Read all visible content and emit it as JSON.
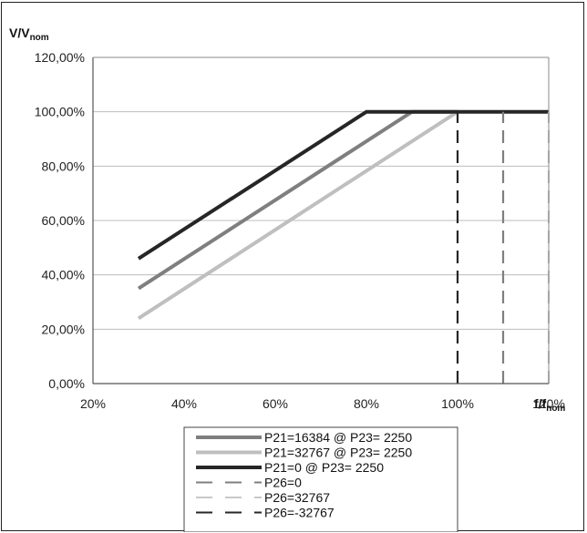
{
  "chart_data": {
    "type": "line",
    "title": "",
    "ylabel": {
      "main": "V/V",
      "sub": "nom"
    },
    "xlabel": {
      "main": "f/f",
      "sub": "nom"
    },
    "xlim": [
      20,
      120
    ],
    "ylim": [
      0,
      120
    ],
    "x_ticks": [
      "20%",
      "40%",
      "60%",
      "80%",
      "100%",
      "120%"
    ],
    "y_ticks": [
      "0,00%",
      "20,00%",
      "40,00%",
      "60,00%",
      "80,00%",
      "100,00%",
      "120,00%"
    ],
    "grid": "horizontal",
    "legend_position": "bottom",
    "series": [
      {
        "name": "P21=16384 @ P23= 2250",
        "color": "#7f7f7f",
        "style": "solid",
        "points": [
          [
            30,
            35
          ],
          [
            90,
            100
          ],
          [
            100,
            100
          ]
        ]
      },
      {
        "name": "P21=32767 @ P23= 2250",
        "color": "#bfbfbf",
        "style": "solid",
        "points": [
          [
            30,
            24
          ],
          [
            100,
            100
          ]
        ]
      },
      {
        "name": "P21=0 @ P23= 2250",
        "color": "#262626",
        "style": "solid",
        "points": [
          [
            30,
            46
          ],
          [
            80,
            100
          ],
          [
            120,
            100
          ]
        ]
      },
      {
        "name": "P26=0",
        "color": "#7f7f7f",
        "style": "dashed",
        "points": [
          [
            110,
            0
          ],
          [
            110,
            100
          ]
        ]
      },
      {
        "name": "P26=32767",
        "color": "#c8c8c8",
        "style": "dashed",
        "points": [
          [
            120,
            0
          ],
          [
            120,
            100
          ]
        ]
      },
      {
        "name": "P26=-32767",
        "color": "#262626",
        "style": "dashed",
        "points": [
          [
            100,
            0
          ],
          [
            100,
            100
          ]
        ]
      }
    ]
  }
}
